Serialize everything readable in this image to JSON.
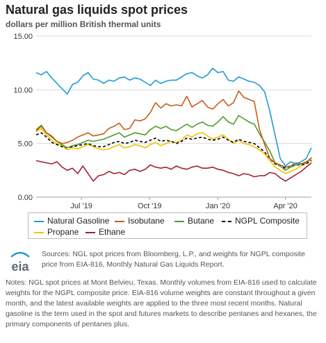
{
  "header": {
    "title": "Natural gas liquids spot prices",
    "subtitle": "dollars per million British thermal units"
  },
  "chart_data": {
    "type": "line",
    "x": [
      "2019-05-01",
      "2019-05-08",
      "2019-05-15",
      "2019-05-22",
      "2019-05-29",
      "2019-06-05",
      "2019-06-12",
      "2019-06-19",
      "2019-06-26",
      "2019-07-03",
      "2019-07-10",
      "2019-07-17",
      "2019-07-24",
      "2019-07-31",
      "2019-08-07",
      "2019-08-14",
      "2019-08-21",
      "2019-08-28",
      "2019-09-04",
      "2019-09-11",
      "2019-09-18",
      "2019-09-25",
      "2019-10-02",
      "2019-10-09",
      "2019-10-16",
      "2019-10-23",
      "2019-10-30",
      "2019-11-06",
      "2019-11-13",
      "2019-11-20",
      "2019-11-27",
      "2019-12-04",
      "2019-12-11",
      "2019-12-18",
      "2019-12-25",
      "2020-01-01",
      "2020-01-08",
      "2020-01-15",
      "2020-01-22",
      "2020-01-29",
      "2020-02-05",
      "2020-02-12",
      "2020-02-19",
      "2020-02-26",
      "2020-03-04",
      "2020-03-11",
      "2020-03-18",
      "2020-03-25",
      "2020-04-01",
      "2020-04-08",
      "2020-04-15",
      "2020-04-22",
      "2020-04-29",
      "2020-05-06"
    ],
    "x_range": [
      "2019-05-01",
      "2020-05-06"
    ],
    "x_ticks": [
      {
        "date": "2019-07-01",
        "label": "Jul '19"
      },
      {
        "date": "2019-10-01",
        "label": "Oct '19"
      },
      {
        "date": "2020-01-01",
        "label": "Jan '20"
      },
      {
        "date": "2020-04-01",
        "label": "Apr '20"
      }
    ],
    "ylim": [
      0,
      15
    ],
    "y_ticks": [
      0,
      5,
      10,
      15
    ],
    "y_tick_labels": [
      "0.00",
      "5.00",
      "10.00",
      "15.00"
    ],
    "grid": "horizontal",
    "legend_position": "bottom",
    "series": [
      {
        "name": "Natural Gasoline",
        "color": "#1c9ad6",
        "dash": false,
        "values": [
          11.6,
          11.4,
          11.7,
          11.1,
          10.6,
          10.1,
          9.6,
          10.5,
          10.7,
          11.3,
          11.6,
          11.0,
          10.9,
          10.6,
          10.9,
          10.8,
          11.1,
          11.2,
          10.9,
          11.1,
          11.0,
          10.7,
          10.4,
          10.9,
          10.6,
          10.8,
          10.9,
          10.9,
          11.2,
          11.5,
          11.6,
          11.3,
          11.1,
          11.4,
          12.0,
          11.6,
          11.7,
          10.9,
          10.8,
          11.2,
          11.0,
          10.8,
          10.7,
          10.4,
          9.8,
          8.0,
          5.8,
          3.6,
          2.9,
          3.3,
          3.1,
          3.3,
          3.6,
          4.6
        ]
      },
      {
        "name": "Isobutane",
        "color": "#c65d17",
        "dash": false,
        "values": [
          6.2,
          6.6,
          6.0,
          5.7,
          5.2,
          5.0,
          5.1,
          5.3,
          5.6,
          5.8,
          6.0,
          5.7,
          5.8,
          5.9,
          6.4,
          6.6,
          6.9,
          6.3,
          6.4,
          7.2,
          7.1,
          7.3,
          7.9,
          8.8,
          8.3,
          8.7,
          8.5,
          8.6,
          8.5,
          9.4,
          8.4,
          8.7,
          9.0,
          8.4,
          8.2,
          8.7,
          9.1,
          8.5,
          8.8,
          9.9,
          9.3,
          9.1,
          8.9,
          6.3,
          4.9,
          3.6,
          3.2,
          3.0,
          2.8,
          2.9,
          3.2,
          3.1,
          3.2,
          3.7
        ]
      },
      {
        "name": "Butane",
        "color": "#4f9a2c",
        "dash": false,
        "values": [
          6.3,
          6.7,
          6.0,
          5.6,
          5.2,
          4.9,
          4.6,
          4.8,
          4.9,
          5.1,
          5.3,
          5.2,
          5.3,
          5.4,
          5.6,
          5.8,
          6.0,
          5.6,
          5.8,
          6.0,
          5.9,
          5.8,
          6.3,
          6.6,
          6.4,
          6.6,
          6.3,
          6.2,
          6.5,
          6.8,
          6.5,
          6.8,
          7.0,
          6.7,
          6.6,
          7.0,
          7.5,
          7.0,
          6.8,
          7.6,
          7.3,
          7.0,
          6.8,
          5.9,
          5.1,
          4.3,
          3.2,
          2.9,
          2.5,
          2.8,
          3.0,
          3.1,
          3.3,
          3.6
        ]
      },
      {
        "name": "NGPL Composite",
        "color": "#000000",
        "dash": true,
        "values": [
          5.8,
          6.0,
          5.6,
          5.1,
          4.9,
          4.7,
          4.6,
          4.7,
          4.8,
          4.9,
          5.0,
          4.8,
          4.7,
          4.7,
          4.9,
          5.1,
          5.2,
          5.0,
          5.1,
          5.3,
          5.2,
          5.1,
          5.3,
          5.5,
          5.2,
          5.3,
          5.2,
          5.0,
          5.2,
          5.5,
          5.4,
          5.5,
          5.6,
          5.4,
          5.3,
          5.4,
          5.6,
          5.3,
          5.1,
          5.4,
          5.2,
          5.1,
          5.0,
          4.6,
          4.2,
          3.6,
          3.1,
          2.9,
          2.7,
          2.9,
          3.0,
          3.0,
          3.1,
          3.4
        ]
      },
      {
        "name": "Propane",
        "color": "#f2c200",
        "dash": false,
        "values": [
          6.1,
          6.4,
          5.8,
          5.3,
          5.0,
          4.8,
          4.4,
          4.6,
          4.5,
          4.7,
          4.9,
          4.7,
          4.5,
          4.4,
          4.5,
          4.7,
          4.9,
          4.6,
          4.7,
          4.9,
          4.8,
          4.6,
          4.9,
          5.1,
          4.8,
          5.0,
          5.2,
          5.1,
          5.3,
          5.8,
          5.6,
          5.9,
          6.0,
          5.7,
          5.4,
          5.6,
          5.8,
          5.4,
          5.0,
          5.3,
          5.0,
          4.9,
          4.7,
          4.4,
          4.0,
          3.4,
          2.8,
          2.5,
          2.2,
          2.4,
          2.6,
          2.9,
          3.2,
          3.5
        ]
      },
      {
        "name": "Ethane",
        "color": "#a31f34",
        "dash": false,
        "values": [
          3.4,
          3.3,
          3.2,
          3.1,
          3.3,
          2.8,
          2.5,
          2.7,
          2.2,
          2.9,
          2.2,
          1.5,
          2.0,
          2.1,
          2.4,
          2.2,
          2.3,
          2.1,
          2.5,
          2.6,
          2.4,
          2.6,
          3.0,
          2.8,
          2.7,
          2.8,
          2.6,
          2.9,
          2.7,
          2.6,
          2.8,
          2.9,
          2.7,
          2.7,
          2.8,
          2.6,
          2.5,
          2.3,
          2.2,
          2.0,
          2.2,
          2.1,
          1.9,
          2.0,
          2.0,
          2.3,
          2.2,
          1.8,
          1.5,
          1.8,
          2.1,
          2.4,
          2.8,
          3.2
        ]
      }
    ]
  },
  "footer": {
    "logo_text": "eia",
    "sources": "Sources: NGL spot prices from Bloomberg, L.P., and weights for NGPL composite price from EIA-816, Monthly Natural Gas Liquids Report.",
    "notes": "Notes: NGL spot prices at Mont Belvieu, Texas. Monthly volumes from EIA-816 used to calculate weights for the NGPL composite price. EIA-816 volume weights are constant throughout a given month, and the latest available weights are applied to the three most recent months. Natural gasoline is the term used in the spot and futures markets to describe pentanes and hexanes, the primary components of pentanes plus."
  }
}
